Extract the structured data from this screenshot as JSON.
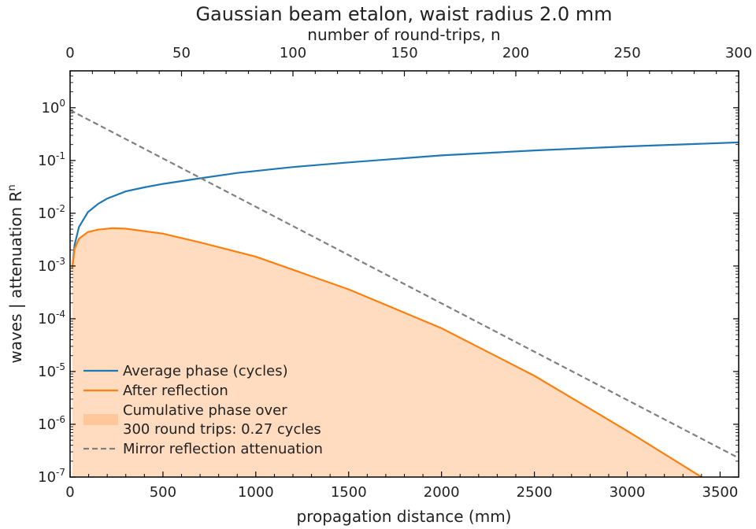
{
  "chart_data": {
    "type": "line",
    "title": "Gaussian beam etalon, waist radius 2.0 mm",
    "xlabel": "propagation distance (mm)",
    "x2label": "number of round-trips, n",
    "ylabel_main": "waves | attenuation R",
    "ylabel_sup": "n",
    "xlim": [
      0,
      3600
    ],
    "x2lim": [
      0,
      300
    ],
    "ylim": [
      1e-07,
      5
    ],
    "yscale": "log",
    "grid": false,
    "legend_position": "bottom-left",
    "x_ticks": [
      "0",
      "500",
      "1000",
      "1500",
      "2000",
      "2500",
      "3000",
      "3500"
    ],
    "x2_ticks": [
      "0",
      "50",
      "100",
      "150",
      "200",
      "250",
      "300"
    ],
    "y_ticks": [
      {
        "base": "10",
        "exp": "0"
      },
      {
        "base": "10",
        "exp": "-1"
      },
      {
        "base": "10",
        "exp": "-2"
      },
      {
        "base": "10",
        "exp": "-3"
      },
      {
        "base": "10",
        "exp": "-4"
      },
      {
        "base": "10",
        "exp": "-5"
      },
      {
        "base": "10",
        "exp": "-6"
      },
      {
        "base": "10",
        "exp": "-7"
      }
    ],
    "series": [
      {
        "name": "Average phase (cycles)",
        "color": "#1f77b4",
        "style": "solid",
        "x": [
          12,
          24,
          48,
          96,
          150,
          200,
          300,
          400,
          500,
          700,
          900,
          1200,
          1500,
          2000,
          2500,
          3000,
          3600
        ],
        "y": [
          0.0009,
          0.0025,
          0.0055,
          0.0105,
          0.015,
          0.019,
          0.026,
          0.031,
          0.036,
          0.046,
          0.058,
          0.075,
          0.092,
          0.125,
          0.155,
          0.185,
          0.22
        ]
      },
      {
        "name": "After reflection",
        "color": "#ff7f0e",
        "style": "solid",
        "x": [
          12,
          24,
          48,
          96,
          150,
          230,
          300,
          500,
          700,
          1000,
          1500,
          2000,
          2500,
          3000,
          3400
        ],
        "y": [
          0.0009,
          0.0021,
          0.0033,
          0.0044,
          0.0049,
          0.0052,
          0.0051,
          0.0041,
          0.0028,
          0.0015,
          0.00036,
          6.6e-05,
          8.3e-06,
          7.5e-07,
          1e-07
        ]
      },
      {
        "name": "Mirror reflection attenuation",
        "color": "#808080",
        "style": "dashed",
        "x": [
          0,
          3600
        ],
        "y": [
          0.9,
          2.3e-07
        ]
      }
    ],
    "fill": {
      "name": "Cumulative phase over 300 round trips: 0.27 cycles",
      "color": "#ffdcc0",
      "under_series": "After reflection"
    },
    "legend": [
      {
        "lines": [
          "Average phase (cycles)"
        ],
        "kind": "line",
        "color": "#1f77b4"
      },
      {
        "lines": [
          "After reflection"
        ],
        "kind": "line",
        "color": "#ff7f0e"
      },
      {
        "lines": [
          "Cumulative phase over",
          "300 round trips: 0.27 cycles"
        ],
        "kind": "patch",
        "color": "#ffc79a"
      },
      {
        "lines": [
          "Mirror reflection attenuation"
        ],
        "kind": "dashed",
        "color": "#808080"
      }
    ]
  }
}
